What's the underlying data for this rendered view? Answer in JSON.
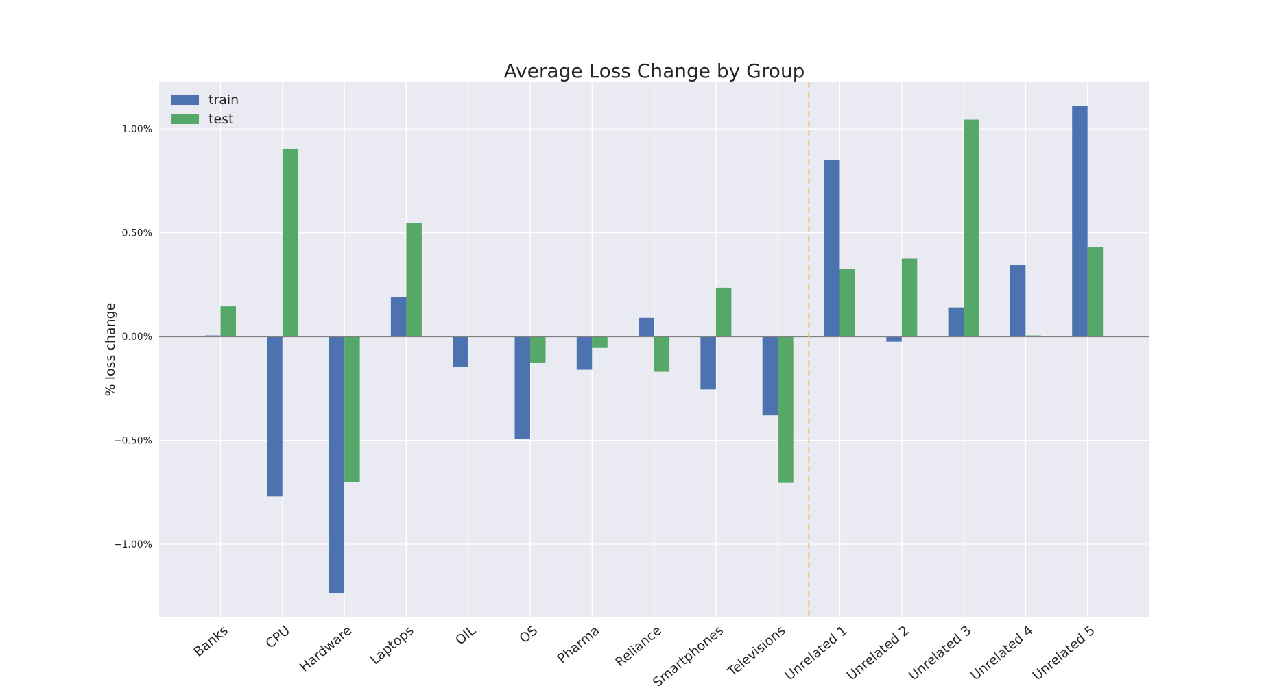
{
  "chart_data": {
    "type": "bar",
    "title": "Average Loss Change by Group",
    "ylabel": "% loss change",
    "xlabel": "",
    "categories": [
      "Banks",
      "CPU",
      "Hardware",
      "Laptops",
      "OIL",
      "OS",
      "Pharma",
      "Reliance",
      "Smartphones",
      "Televisions",
      "Unrelated 1",
      "Unrelated 2",
      "Unrelated 3",
      "Unrelated 4",
      "Unrelated 5"
    ],
    "series": [
      {
        "name": "train",
        "color": "#4c72b0",
        "values": [
          0.005,
          -0.77,
          -1.235,
          0.19,
          -0.145,
          -0.495,
          -0.16,
          0.09,
          -0.255,
          -0.38,
          0.85,
          -0.025,
          0.14,
          0.345,
          1.11
        ]
      },
      {
        "name": "test",
        "color": "#55a868",
        "values": [
          0.145,
          0.905,
          -0.7,
          0.545,
          0.0,
          -0.125,
          -0.055,
          -0.17,
          0.235,
          -0.705,
          0.325,
          0.375,
          1.045,
          0.005,
          0.43
        ]
      }
    ],
    "ylim": [
      -1.35,
      1.225
    ],
    "yticks": [
      1.0,
      0.5,
      0.0,
      -0.5,
      -1.0
    ],
    "ytick_labels": [
      "1.00%",
      "0.50%",
      "0.00%",
      "−0.50%",
      "−1.00%"
    ],
    "grid": true,
    "legend_position": "top-left",
    "separator_after_index": 9,
    "separator_color": "#f5c27a",
    "background_color": "#eaeaf2"
  }
}
